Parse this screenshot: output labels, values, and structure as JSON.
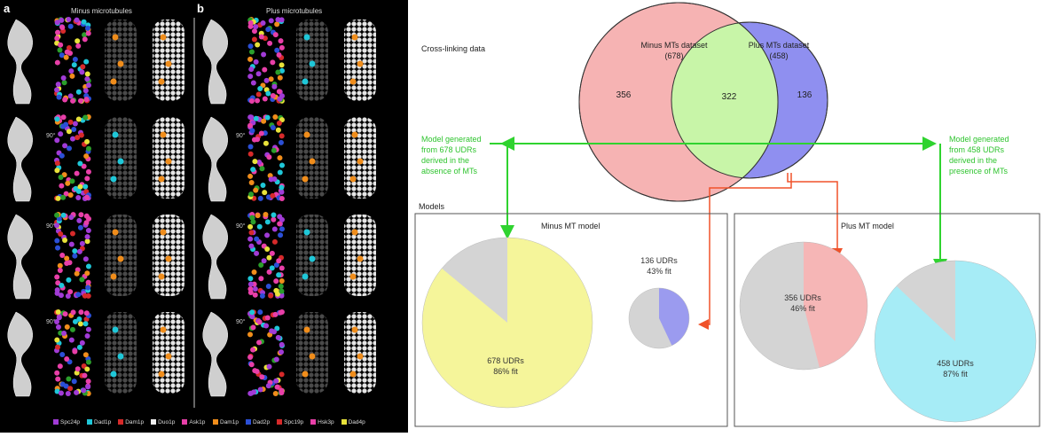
{
  "left_panel": {
    "panel_a_letter": "a",
    "panel_b_letter": "b",
    "panel_a_title": "Minus microtubules",
    "panel_b_title": "Plus microtubules",
    "rotation_label": "90°",
    "legend_a": [
      {
        "label": "Spc24p",
        "color": "#a13bd6"
      },
      {
        "label": "Dad1p",
        "color": "#1fc7d8"
      },
      {
        "label": "Dam1p",
        "color": "#d62a2a"
      },
      {
        "label": "Duo1p",
        "color": "#f0f0f0"
      },
      {
        "label": "Ask1p",
        "color": "#e83fa8"
      }
    ],
    "legend_b": [
      {
        "label": "Dam1p",
        "color": "#f08d1b"
      },
      {
        "label": "Dad2p",
        "color": "#2b4fd6"
      },
      {
        "label": "Spc19p",
        "color": "#d62a2a"
      },
      {
        "label": "Hsk3p",
        "color": "#e83fa8"
      },
      {
        "label": "Dad4p",
        "color": "#e8e23a"
      }
    ]
  },
  "right_panel": {
    "crosslink_label": "Cross-linking data",
    "venn": {
      "minus_label": "Minus MTs dataset",
      "minus_count": "(678)",
      "plus_label": "Plus MTs dataset",
      "plus_count": "(458)",
      "minus_only": "356",
      "overlap": "322",
      "plus_only": "136"
    },
    "model_left_note": [
      "Model generated",
      "from 678 UDRs",
      "derived in the",
      "absence of MTs"
    ],
    "model_right_note": [
      "Model generated",
      "from 458 UDRs",
      "derived in the",
      "presence of MTs"
    ],
    "models_label": "Models",
    "minus_model": {
      "title": "Minus MT model",
      "big_pie_line1": "678 UDRs",
      "big_pie_line2": "86% fit",
      "small_pie_line1": "136 UDRs",
      "small_pie_line2": "43% fit"
    },
    "plus_model": {
      "title": "Plus MT model",
      "pie1_line1": "356 UDRs",
      "pie1_line2": "46% fit",
      "pie2_line1": "458 UDRs",
      "pie2_line2": "87% fit"
    },
    "colors": {
      "minus_venn": "#f6b3b3",
      "plus_venn": "#8f8ff0",
      "overlap_venn": "#c8f5a8",
      "arrow_green": "#2fd32f",
      "arrow_red": "#f0522a",
      "pie_grey": "#d4d4d4",
      "pie_yellow": "#f5f59a",
      "pie_blue": "#9b9bef",
      "pie_pink": "#f6b6b6",
      "pie_cyan": "#a6ecf6"
    }
  }
}
